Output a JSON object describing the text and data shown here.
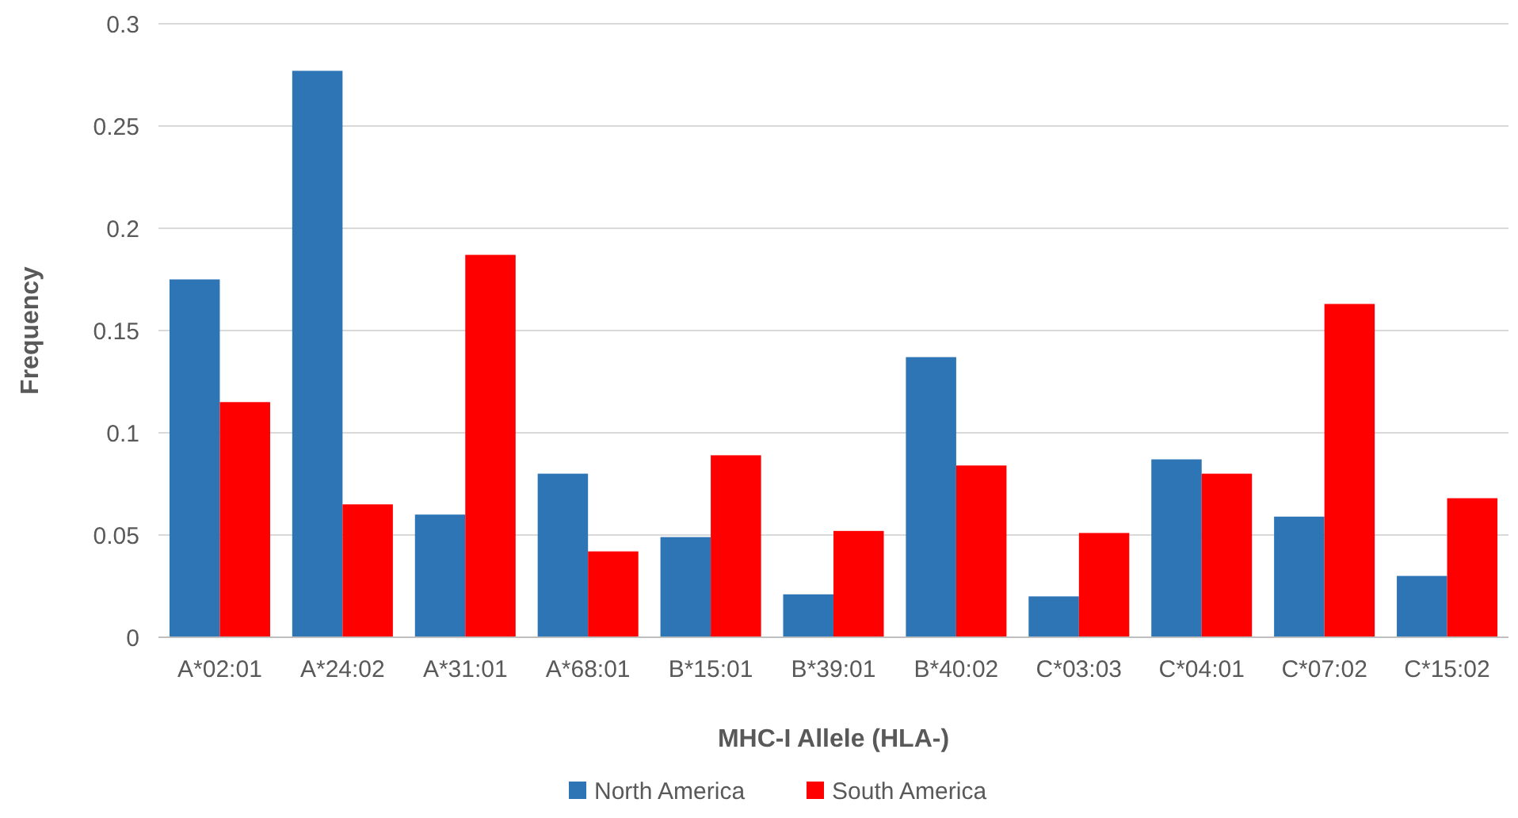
{
  "chart_data": {
    "type": "bar",
    "xlabel": "MHC-I Allele (HLA-)",
    "ylabel": "Frequency",
    "categories": [
      "A*02:01",
      "A*24:02",
      "A*31:01",
      "A*68:01",
      "B*15:01",
      "B*39:01",
      "B*40:02",
      "C*03:03",
      "C*04:01",
      "C*07:02",
      "C*15:02"
    ],
    "series": [
      {
        "name": "North America",
        "color": "#2e75b6",
        "values": [
          0.175,
          0.277,
          0.06,
          0.08,
          0.049,
          0.021,
          0.137,
          0.02,
          0.087,
          0.059,
          0.03
        ]
      },
      {
        "name": "South America",
        "color": "#ff0000",
        "values": [
          0.115,
          0.065,
          0.187,
          0.042,
          0.089,
          0.052,
          0.084,
          0.051,
          0.08,
          0.163,
          0.068
        ]
      }
    ],
    "ylim": [
      0,
      0.3
    ],
    "yticks": [
      0,
      0.05,
      0.1,
      0.15,
      0.2,
      0.25,
      0.3
    ],
    "grid": "y",
    "legend": "bottom"
  }
}
